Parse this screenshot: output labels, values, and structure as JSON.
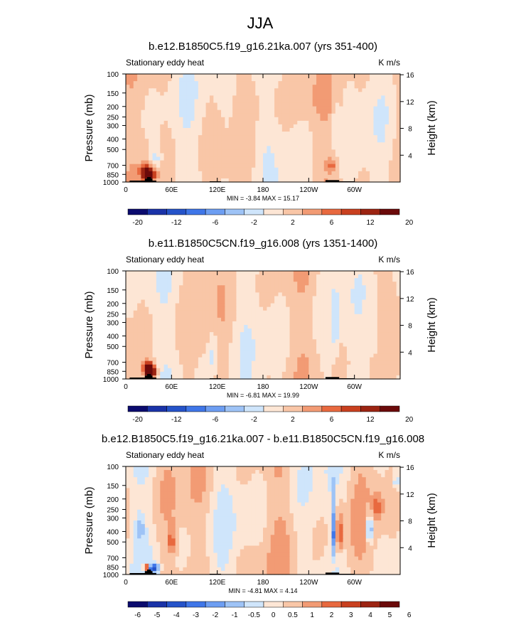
{
  "figure": {
    "title": "JJA"
  },
  "colors": {
    "land": "#000000",
    "frame": "#000000",
    "palette_abs": [
      "#0b0b6e",
      "#1a33a8",
      "#2553c9",
      "#3f76e8",
      "#6d9ef2",
      "#9ec3f6",
      "#cfe5fb",
      "#fde6d5",
      "#f9c6a7",
      "#f29b74",
      "#e8693f",
      "#c9401f",
      "#9c2412",
      "#6b0a0a"
    ],
    "palette_diff": [
      "#0b0b6e",
      "#1a33a8",
      "#2553c9",
      "#3f76e8",
      "#6d9ef2",
      "#9ec3f6",
      "#cfe5fb",
      "#fde6d5",
      "#f9c6a7",
      "#f29b74",
      "#e8693f",
      "#c9401f",
      "#9c2412",
      "#6b0a0a"
    ]
  },
  "chart_data": [
    {
      "type": "heatmap",
      "title": "b.e12.B1850C5.f19_g16.21ka.007 (yrs 351-400)",
      "left_label": "Stationary eddy heat",
      "units": "K m/s",
      "ylabel": "Pressure (mb)",
      "ylabel_right": "Height (km)",
      "x_ticks": [
        "0",
        "60E",
        "120E",
        "180",
        "120W",
        "60W"
      ],
      "x_tick_lon": [
        0,
        60,
        120,
        180,
        240,
        300
      ],
      "xlim": [
        0,
        360
      ],
      "y_ticks": [
        "100",
        "150",
        "200",
        "250",
        "300",
        "400",
        "500",
        "700",
        "850",
        "1000"
      ],
      "y_tick_p": [
        100,
        150,
        200,
        250,
        300,
        400,
        500,
        700,
        850,
        1000
      ],
      "ylim": [
        1000,
        100
      ],
      "right_ticks": [
        "4",
        "8",
        "12",
        "16"
      ],
      "right_tick_km": [
        4,
        8,
        12,
        16
      ],
      "stats": "MIN =  -3.84  MAX =  15.17",
      "min": -3.84,
      "max": 15.17,
      "colorbar_labels": [
        "-20",
        "-12",
        "-6",
        "-2",
        "2",
        "6",
        "12",
        "20"
      ],
      "levels": [
        -20,
        -16,
        -12,
        -8,
        -6,
        -4,
        -2,
        0,
        2,
        4,
        6,
        8,
        12,
        16,
        20
      ],
      "mode": "abs",
      "features": [
        {
          "lon": 30,
          "p": 850,
          "dlon": 8,
          "dp": 120,
          "value": 15.2
        },
        {
          "lon": 24,
          "p": 780,
          "dlon": 6,
          "dp": 90,
          "value": 6
        },
        {
          "lon": 40,
          "p": 620,
          "dlon": 8,
          "dp": 150,
          "value": -3.5
        },
        {
          "lon": 275,
          "p": 300,
          "dlon": 3,
          "dp": 160,
          "value": -3.2
        },
        {
          "lon": 270,
          "p": 700,
          "dlon": 6,
          "dp": 100,
          "value": 4
        },
        {
          "lon": 150,
          "p": 350,
          "dlon": 30,
          "dp": 250,
          "value": -1.5
        },
        {
          "lon": 210,
          "p": 180,
          "dlon": 40,
          "dp": 80,
          "value": 1.2
        }
      ]
    },
    {
      "type": "heatmap",
      "title": "b.e11.B1850C5CN.f19_g16.008 (yrs 1351-1400)",
      "left_label": "Stationary eddy heat",
      "units": "K m/s",
      "ylabel": "Pressure (mb)",
      "ylabel_right": "Height (km)",
      "x_ticks": [
        "0",
        "60E",
        "120E",
        "180",
        "120W",
        "60W"
      ],
      "x_tick_lon": [
        0,
        60,
        120,
        180,
        240,
        300
      ],
      "xlim": [
        0,
        360
      ],
      "y_ticks": [
        "100",
        "150",
        "200",
        "250",
        "300",
        "400",
        "500",
        "700",
        "850",
        "1000"
      ],
      "y_tick_p": [
        100,
        150,
        200,
        250,
        300,
        400,
        500,
        700,
        850,
        1000
      ],
      "ylim": [
        1000,
        100
      ],
      "right_ticks": [
        "4",
        "8",
        "12",
        "16"
      ],
      "right_tick_km": [
        4,
        8,
        12,
        16
      ],
      "stats": "MIN =  -6.81  MAX =  19.99",
      "min": -6.81,
      "max": 19.99,
      "colorbar_labels": [
        "-20",
        "-12",
        "-6",
        "-2",
        "2",
        "6",
        "12",
        "20"
      ],
      "levels": [
        -20,
        -16,
        -12,
        -8,
        -6,
        -4,
        -2,
        0,
        2,
        4,
        6,
        8,
        12,
        16,
        20
      ],
      "mode": "abs",
      "features": [
        {
          "lon": 32,
          "p": 850,
          "dlon": 7,
          "dp": 110,
          "value": 20
        },
        {
          "lon": 28,
          "p": 760,
          "dlon": 6,
          "dp": 80,
          "value": 7
        },
        {
          "lon": 275,
          "p": 350,
          "dlon": 3,
          "dp": 200,
          "value": -4
        },
        {
          "lon": 115,
          "p": 600,
          "dlon": 6,
          "dp": 250,
          "value": -3
        },
        {
          "lon": 330,
          "p": 450,
          "dlon": 12,
          "dp": 260,
          "value": -2.5
        }
      ]
    },
    {
      "type": "heatmap",
      "title": "b.e12.B1850C5.f19_g16.21ka.007 - b.e11.B1850C5CN.f19_g16.008",
      "left_label": "Stationary eddy heat",
      "units": "K m/s",
      "ylabel": "Pressure (mb)",
      "ylabel_right": "Height (km)",
      "x_ticks": [
        "0",
        "60E",
        "120E",
        "180",
        "120W",
        "60W"
      ],
      "x_tick_lon": [
        0,
        60,
        120,
        180,
        240,
        300
      ],
      "xlim": [
        0,
        360
      ],
      "y_ticks": [
        "100",
        "150",
        "200",
        "250",
        "300",
        "400",
        "500",
        "700",
        "850",
        "1000"
      ],
      "y_tick_p": [
        100,
        150,
        200,
        250,
        300,
        400,
        500,
        700,
        850,
        1000
      ],
      "ylim": [
        1000,
        100
      ],
      "right_ticks": [
        "4",
        "8",
        "12",
        "16"
      ],
      "right_tick_km": [
        4,
        8,
        12,
        16
      ],
      "stats": "MIN =  -4.81  MAX =  4.14",
      "min": -4.81,
      "max": 4.14,
      "colorbar_labels": [
        "-6",
        "-5",
        "-4",
        "-3",
        "-2",
        "-1",
        "-0.5",
        "0",
        "0.5",
        "1",
        "2",
        "3",
        "4",
        "5",
        "6"
      ],
      "levels": [
        -6,
        -5,
        -4,
        -3,
        -2,
        -1,
        -0.5,
        0,
        0.5,
        1,
        2,
        3,
        4,
        5,
        6
      ],
      "mode": "diff",
      "features": [
        {
          "lon": 36,
          "p": 880,
          "dlon": 6,
          "dp": 80,
          "value": -4.8
        },
        {
          "lon": 28,
          "p": 860,
          "dlon": 4,
          "dp": 60,
          "value": 4.1
        },
        {
          "lon": 273,
          "p": 420,
          "dlon": 3,
          "dp": 200,
          "value": -3
        },
        {
          "lon": 280,
          "p": 420,
          "dlon": 3,
          "dp": 180,
          "value": 2.5
        },
        {
          "lon": 320,
          "p": 380,
          "dlon": 4,
          "dp": 120,
          "value": -2.2
        },
        {
          "lon": 355,
          "p": 140,
          "dlon": 4,
          "dp": 25,
          "value": -1.2
        },
        {
          "lon": 18,
          "p": 380,
          "dlon": 5,
          "dp": 80,
          "value": -1.5
        },
        {
          "lon": 60,
          "p": 500,
          "dlon": 6,
          "dp": 150,
          "value": 1.2
        },
        {
          "lon": 330,
          "p": 240,
          "dlon": 8,
          "dp": 60,
          "value": 1.0
        }
      ]
    }
  ]
}
